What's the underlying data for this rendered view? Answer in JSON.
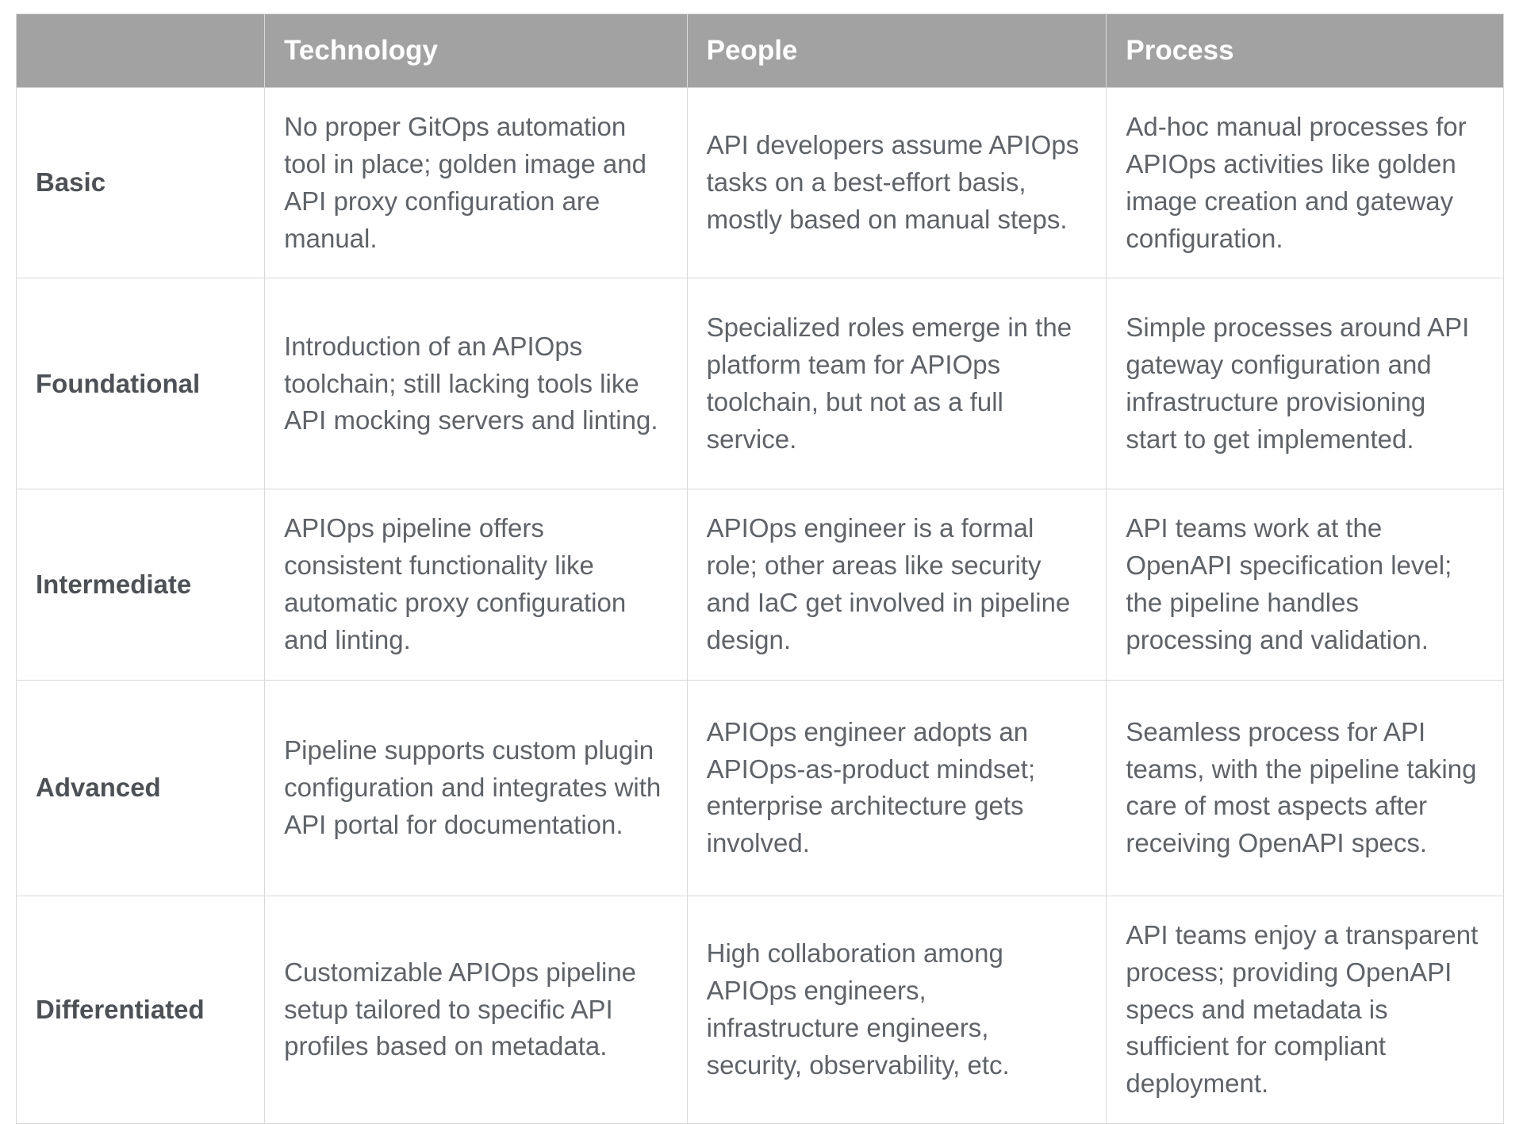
{
  "table": {
    "columns": [
      "",
      "Technology",
      "People",
      "Process"
    ],
    "rows": [
      {
        "label": "Basic",
        "technology": "No proper GitOps automation tool in place; golden image and API proxy configuration are manual.",
        "people": "API developers assume APIOps tasks on a best-effort basis, mostly based on manual steps.",
        "process": "Ad-hoc manual processes for APIOps activities like golden image creation and gateway configuration."
      },
      {
        "label": "Foundational",
        "technology": "Introduction of an APIOps toolchain; still lacking tools like API mocking servers and linting.",
        "people": "Specialized roles emerge in the platform team for APIOps toolchain, but not as a full service.",
        "process": "Simple processes around API gateway configuration and infrastructure provisioning start to get implemented."
      },
      {
        "label": "Intermediate",
        "technology": "APIOps pipeline offers consistent functionality like automatic proxy configuration and linting.",
        "people": "APIOps engineer is a formal role; other areas like security and IaC get involved in pipeline design.",
        "process": "API teams work at the OpenAPI specification level; the pipeline handles processing and validation."
      },
      {
        "label": "Advanced",
        "technology": "Pipeline supports custom plugin configuration and integrates with API portal for documentation.",
        "people": "APIOps engineer adopts an APIOps-as-product mindset; enterprise architecture gets involved.",
        "process": "Seamless process for API teams, with the pipeline taking care of most aspects after receiving OpenAPI specs."
      },
      {
        "label": "Differentiated",
        "technology": "Customizable APIOps pipeline setup tailored to specific API profiles based on metadata.",
        "people": "High collaboration among APIOps engineers, infrastructure engineers, security, observability, etc.",
        "process": "API teams enjoy a transparent process; providing OpenAPI specs and metadata is sufficient for compliant deployment."
      }
    ]
  },
  "colors": {
    "header_bg": "#a2a2a2",
    "header_text": "#ffffff",
    "body_text": "#5f6368",
    "row_label_text": "#4d5156",
    "border": "#d9d9d9"
  }
}
